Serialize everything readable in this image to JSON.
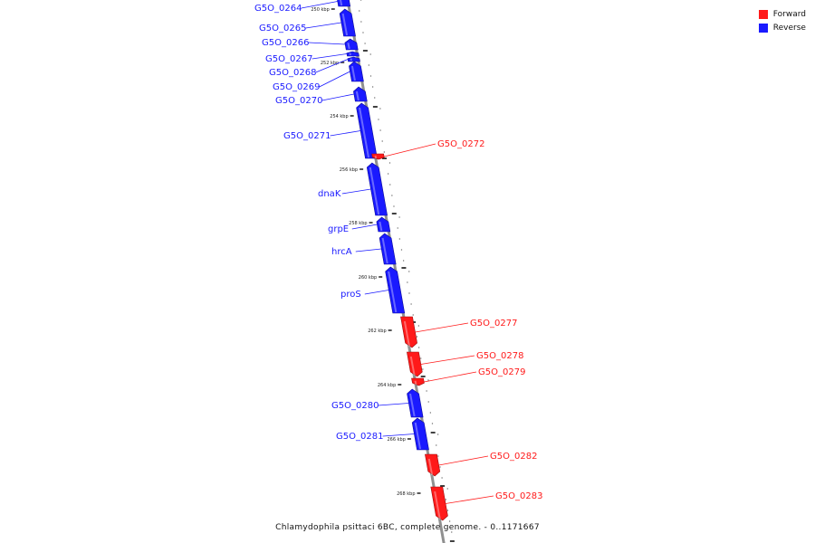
{
  "caption": "Chlamydophila psittaci 6BC, complete genome. - 0..1171667",
  "legend": [
    {
      "label": "Forward",
      "color": "#ff1a1a"
    },
    {
      "label": "Reverse",
      "color": "#1a1aff"
    }
  ],
  "colors": {
    "forward": "#ff1a1a",
    "reverse": "#1a1aff",
    "backbone": "#909090"
  },
  "genes": [
    {
      "name": "G5O_0264",
      "strand": "reverse"
    },
    {
      "name": "G5O_0265",
      "strand": "reverse"
    },
    {
      "name": "G5O_0266",
      "strand": "reverse"
    },
    {
      "name": "G5O_0267",
      "strand": "reverse"
    },
    {
      "name": "G5O_0268",
      "strand": "reverse"
    },
    {
      "name": "G5O_0269",
      "strand": "reverse"
    },
    {
      "name": "G5O_0270",
      "strand": "reverse"
    },
    {
      "name": "G5O_0271",
      "strand": "reverse"
    },
    {
      "name": "G5O_0272",
      "strand": "forward"
    },
    {
      "name": "dnaK",
      "strand": "reverse"
    },
    {
      "name": "grpE",
      "strand": "reverse"
    },
    {
      "name": "hrcA",
      "strand": "reverse"
    },
    {
      "name": "proS",
      "strand": "reverse"
    },
    {
      "name": "G5O_0277",
      "strand": "forward"
    },
    {
      "name": "G5O_0278",
      "strand": "forward"
    },
    {
      "name": "G5O_0279",
      "strand": "forward"
    },
    {
      "name": "G5O_0280",
      "strand": "reverse"
    },
    {
      "name": "G5O_0281",
      "strand": "reverse"
    },
    {
      "name": "G5O_0282",
      "strand": "forward"
    },
    {
      "name": "G5O_0283",
      "strand": "forward"
    }
  ],
  "scale_labels": [
    "250 kbp",
    "252 kbp",
    "254 kbp",
    "256 kbp",
    "258 kbp",
    "260 kbp",
    "262 kbp",
    "264 kbp",
    "266 kbp",
    "268 kbp"
  ]
}
